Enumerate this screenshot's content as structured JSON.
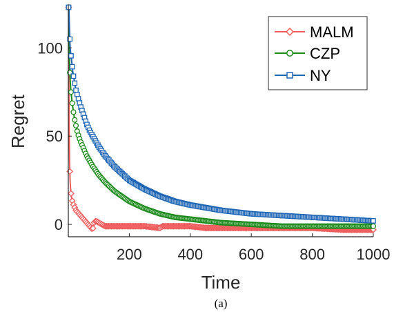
{
  "chart_data": {
    "type": "line",
    "xlabel": "Time",
    "ylabel": "Regret",
    "caption": "(a)",
    "xlim": [
      0,
      1000
    ],
    "ylim": [
      -7,
      124
    ],
    "xticks": [
      200,
      400,
      600,
      800,
      1000
    ],
    "yticks": [
      0,
      50,
      100
    ],
    "grid": false,
    "legend_position": "top-right",
    "series": [
      {
        "name": "MALM",
        "color": "#f05a5a",
        "marker": "diamond",
        "x": [
          1,
          2,
          3,
          4,
          5,
          6,
          8,
          10,
          12,
          15,
          20,
          25,
          30,
          40,
          50,
          60,
          70,
          80,
          85,
          90,
          100,
          120,
          150,
          200,
          250,
          300,
          310,
          350,
          400,
          450,
          500,
          550,
          600,
          700,
          800,
          900,
          1000
        ],
        "y": [
          123,
          75,
          50,
          37,
          30,
          24,
          19,
          16,
          14,
          12,
          10,
          8,
          7,
          5,
          3,
          1,
          -1,
          -3,
          1,
          2,
          1,
          -1,
          -1,
          -1,
          -1,
          -2,
          -1,
          -1,
          -1,
          -2,
          -2,
          -2,
          -2,
          -2,
          -2,
          -3,
          -3
        ]
      },
      {
        "name": "CZP",
        "color": "#1a8a1a",
        "marker": "circle",
        "x": [
          1,
          2,
          3,
          4,
          5,
          6,
          8,
          10,
          12,
          15,
          20,
          25,
          30,
          40,
          50,
          60,
          70,
          80,
          100,
          120,
          150,
          200,
          250,
          300,
          350,
          400,
          500,
          600,
          700,
          800,
          900,
          1000
        ],
        "y": [
          123,
          110,
          100,
          92,
          86,
          82,
          77,
          73,
          70,
          66,
          60,
          56,
          52,
          47,
          43,
          39,
          36,
          33,
          28,
          24,
          19,
          13,
          9,
          6,
          4,
          3,
          1,
          0,
          -1,
          -1,
          -1,
          -1
        ]
      },
      {
        "name": "NY",
        "color": "#1f66b5",
        "marker": "square",
        "x": [
          1,
          2,
          3,
          4,
          5,
          6,
          8,
          10,
          12,
          15,
          20,
          25,
          30,
          40,
          50,
          60,
          70,
          80,
          100,
          120,
          150,
          200,
          250,
          300,
          350,
          400,
          500,
          600,
          700,
          800,
          900,
          1000
        ],
        "y": [
          123,
          123,
          115,
          110,
          105,
          100,
          97,
          94,
          91,
          86,
          81,
          76,
          73,
          67,
          62,
          57,
          53,
          50,
          44,
          39,
          33,
          25,
          20,
          16,
          13,
          11,
          8,
          6,
          5,
          4,
          3,
          2
        ]
      }
    ]
  }
}
